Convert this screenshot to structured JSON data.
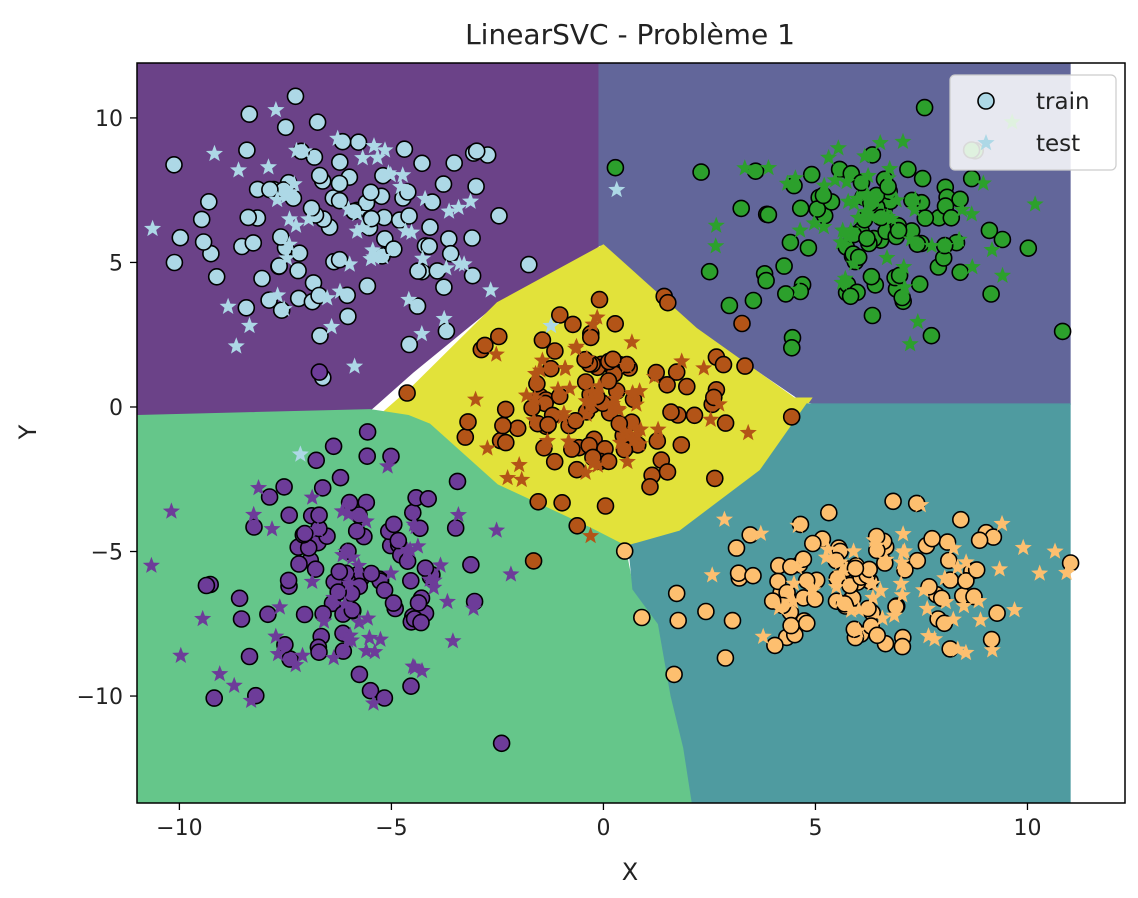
{
  "chart_data": {
    "type": "scatter",
    "title": "LinearSVC - Problème 1",
    "xlabel": "X",
    "ylabel": "Y",
    "xlim": [
      -11,
      12.3
    ],
    "ylim": [
      -13.7,
      11.9
    ],
    "x_ticks": [
      -10,
      -5,
      0,
      5,
      10
    ],
    "y_ticks": [
      -10,
      -5,
      0,
      5,
      10
    ],
    "x_tick_labels": [
      "−10",
      "−5",
      "0",
      "5",
      "10"
    ],
    "y_tick_labels": [
      "−10",
      "−5",
      "0",
      "5",
      "10"
    ],
    "grid": false,
    "legend": {
      "placement": "top-right",
      "entries": [
        {
          "label": "train",
          "marker": "circle",
          "color": "#add8e6"
        },
        {
          "label": "test",
          "marker": "star",
          "color": "#add8e6"
        }
      ]
    },
    "decision_regions": [
      {
        "class": 0,
        "color": "#6b4288",
        "polygon": [
          [
            -11,
            11.9
          ],
          [
            -0.1,
            11.9
          ],
          [
            -0.1,
            5.6
          ],
          [
            -0.8,
            4.7
          ],
          [
            -2.5,
            3.6
          ],
          [
            -4.5,
            1.2
          ],
          [
            -5.5,
            -0.1
          ],
          [
            -11,
            -0.3
          ]
        ]
      },
      {
        "class": 1,
        "color": "#62669a",
        "polygon": [
          [
            -0.1,
            11.9
          ],
          [
            11,
            11.9
          ],
          [
            11,
            0.1
          ],
          [
            5.1,
            0.1
          ],
          [
            4.7,
            0.2
          ],
          [
            2.2,
            2.7
          ],
          [
            0,
            5.6
          ],
          [
            -0.1,
            5.6
          ]
        ]
      },
      {
        "class": 2,
        "color": "#e2e23a",
        "polygon": [
          [
            0,
            5.6
          ],
          [
            -2.5,
            3.6
          ],
          [
            -4.5,
            0.7
          ],
          [
            -5.2,
            -0.2
          ],
          [
            -4.1,
            -0.6
          ],
          [
            -2.5,
            -2.7
          ],
          [
            -0.3,
            -4.2
          ],
          [
            0.5,
            -4.8
          ],
          [
            1.8,
            -4.3
          ],
          [
            3.7,
            -2.2
          ],
          [
            4.9,
            0.3
          ],
          [
            4.5,
            0.3
          ],
          [
            2.2,
            2.7
          ]
        ]
      },
      {
        "class": 3,
        "color": "#65c68a",
        "polygon": [
          [
            -11,
            -0.3
          ],
          [
            -5.5,
            -0.1
          ],
          [
            -4.6,
            -0.3
          ],
          [
            -4.1,
            -0.6
          ],
          [
            -2.5,
            -2.7
          ],
          [
            -0.3,
            -4.2
          ],
          [
            0.5,
            -4.8
          ],
          [
            0.7,
            -6.3
          ],
          [
            1.3,
            -7.5
          ],
          [
            1.6,
            -10
          ],
          [
            1.9,
            -11.8
          ],
          [
            2.1,
            -13.7
          ],
          [
            -11,
            -13.7
          ]
        ]
      },
      {
        "class": 4,
        "color": "#4f9ba0",
        "polygon": [
          [
            11,
            0.1
          ],
          [
            11,
            -13.7
          ],
          [
            2.1,
            -13.7
          ],
          [
            1.9,
            -11.8
          ],
          [
            1.6,
            -10
          ],
          [
            1.3,
            -7.5
          ],
          [
            0.7,
            -6.3
          ],
          [
            0.6,
            -4.8
          ],
          [
            1.8,
            -4.3
          ],
          [
            3.7,
            -2.2
          ],
          [
            4.8,
            0.1
          ],
          [
            5.1,
            0.1
          ]
        ]
      }
    ],
    "clusters": [
      {
        "name": "class-0",
        "color": "#add8e6",
        "center": [
          -6.0,
          6.0
        ],
        "spread": [
          2.0,
          1.9
        ]
      },
      {
        "name": "class-1",
        "color": "#2ca02c",
        "center": [
          6.2,
          6.2
        ],
        "spread": [
          1.7,
          1.8
        ]
      },
      {
        "name": "class-2",
        "color": "#b35417",
        "center": [
          0.0,
          0.1
        ],
        "spread": [
          1.6,
          1.6
        ]
      },
      {
        "name": "class-3",
        "color": "#6d3c99",
        "center": [
          -6.0,
          -6.0
        ],
        "spread": [
          1.6,
          2.2
        ]
      },
      {
        "name": "class-4",
        "color": "#fdbf6f",
        "center": [
          6.2,
          -6.2
        ],
        "spread": [
          2.0,
          1.2
        ]
      }
    ],
    "train_points_per_class": 100,
    "test_points_per_class": 60,
    "train_marker": {
      "shape": "circle",
      "edge_color": "#000000"
    },
    "test_marker": {
      "shape": "star"
    }
  }
}
